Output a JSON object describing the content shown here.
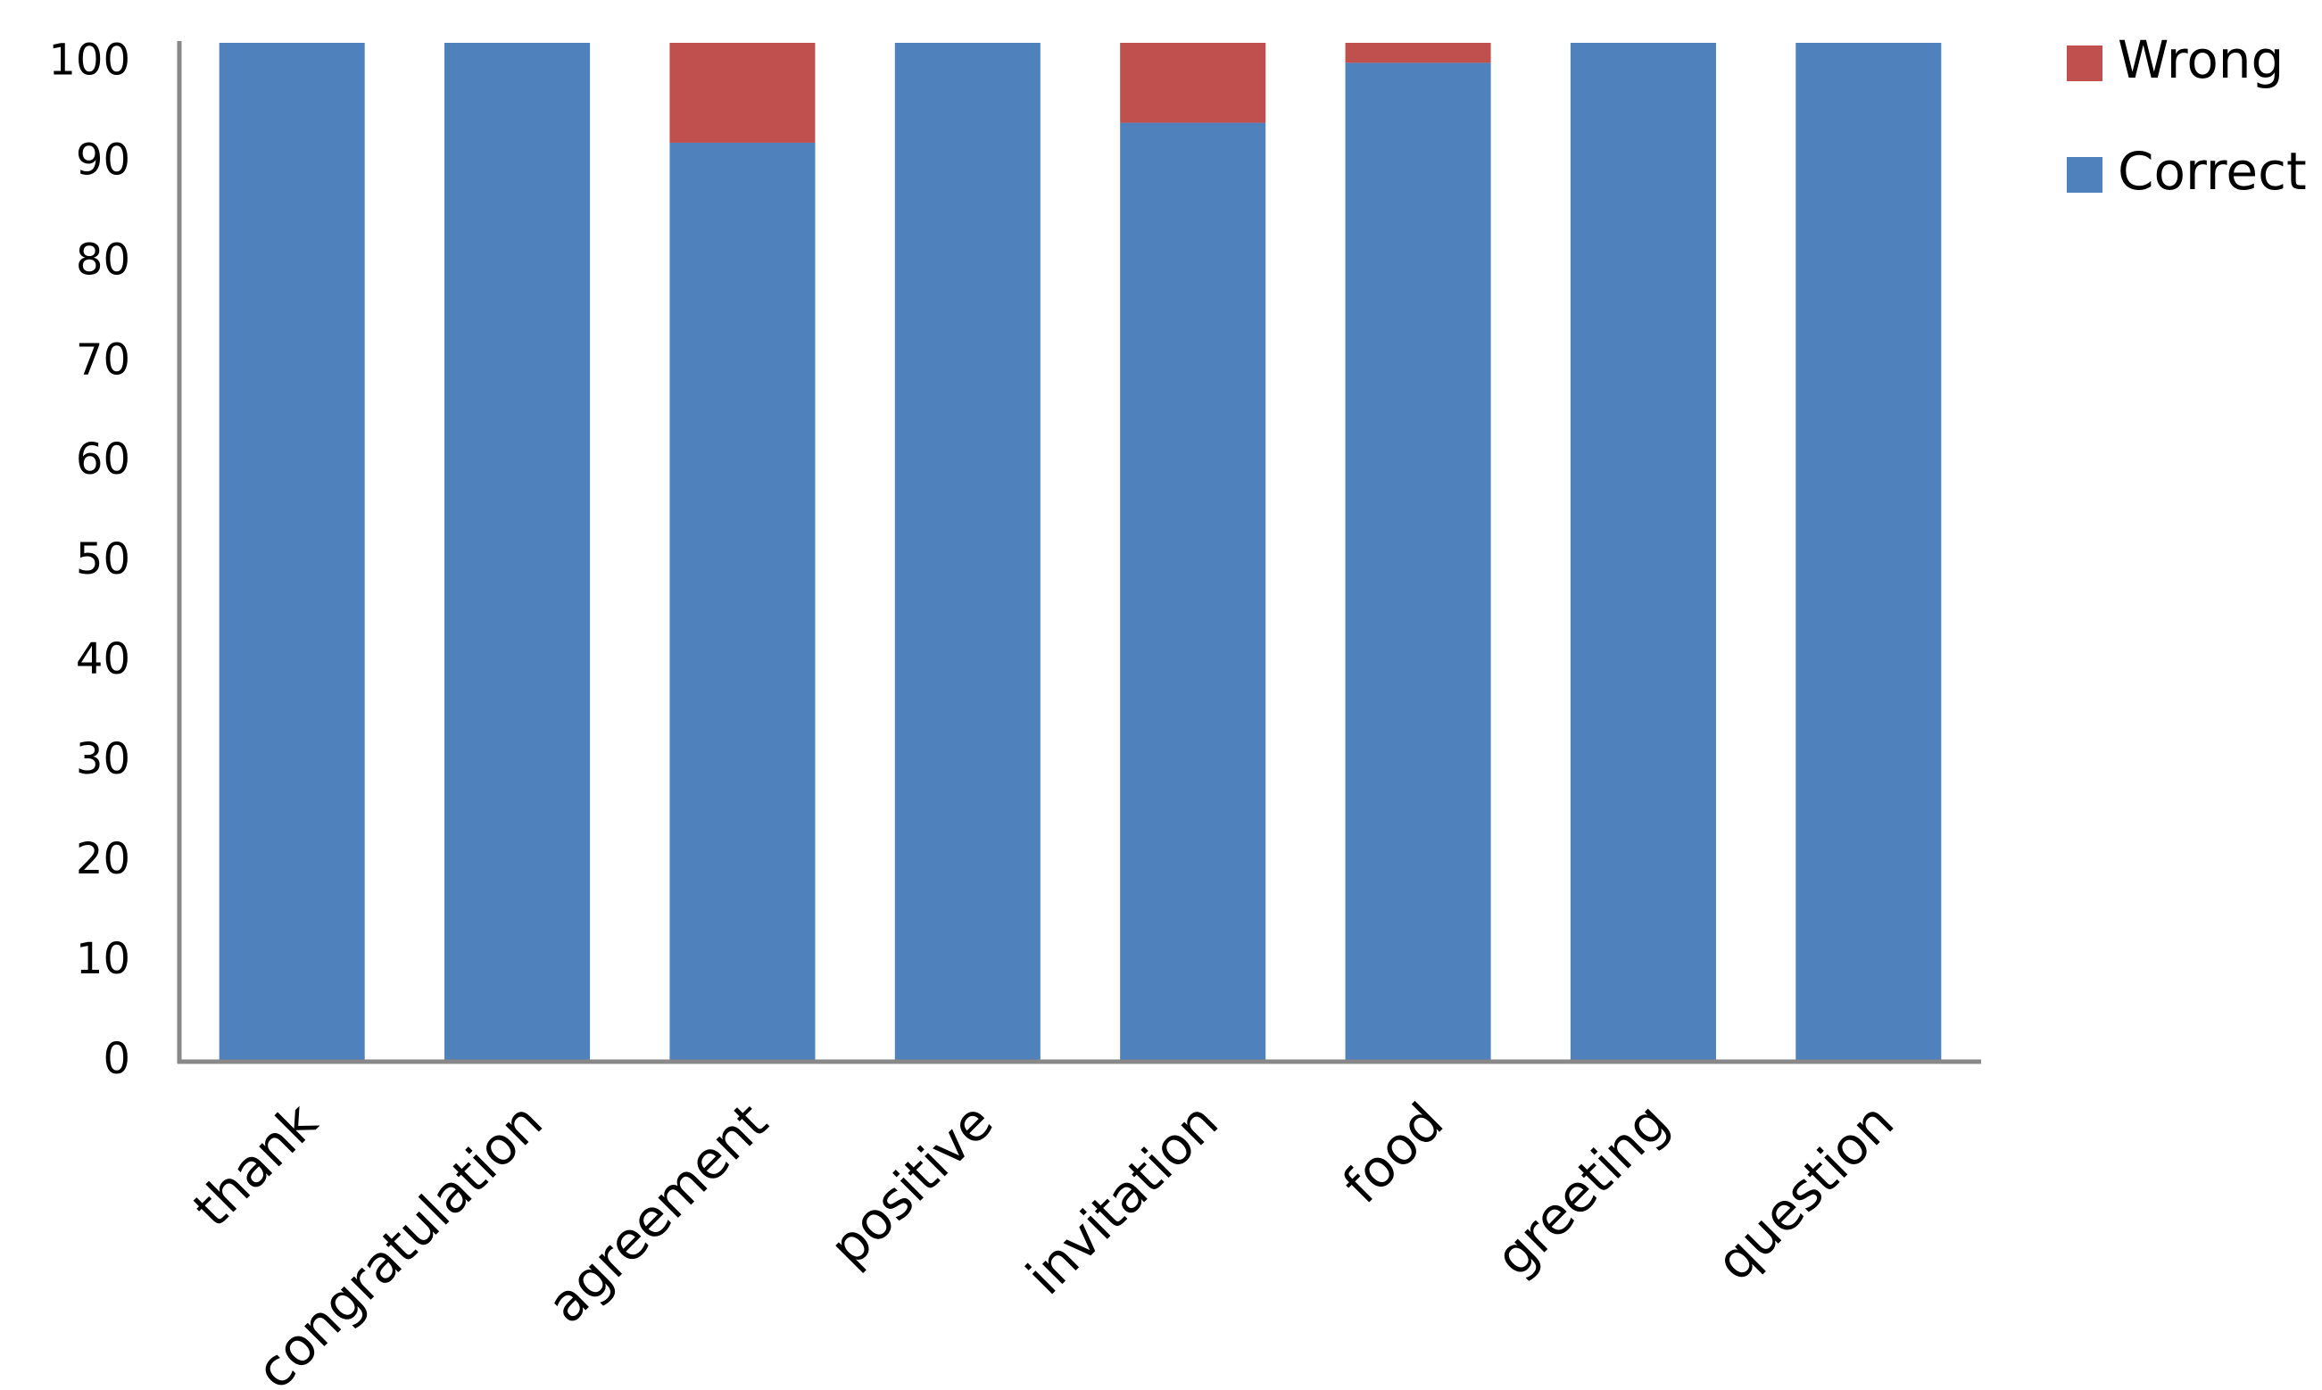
{
  "chart_data": {
    "type": "stacked_bar",
    "categories": [
      "thank",
      "congratulation",
      "agreement",
      "positive",
      "invitation",
      "food",
      "greeting",
      "question"
    ],
    "series": [
      {
        "name": "Correct",
        "color": "#4f81bd",
        "values": [
          102,
          102,
          92,
          102,
          94,
          100,
          102,
          102
        ]
      },
      {
        "name": "Wrong",
        "color": "#c0504d",
        "values": [
          0,
          0,
          10,
          0,
          8,
          2,
          0,
          0
        ]
      }
    ],
    "ylim": [
      0,
      102
    ],
    "yticks": [
      0,
      10,
      20,
      30,
      40,
      50,
      60,
      70,
      80,
      90,
      100
    ],
    "grid": false,
    "legend": "right"
  }
}
